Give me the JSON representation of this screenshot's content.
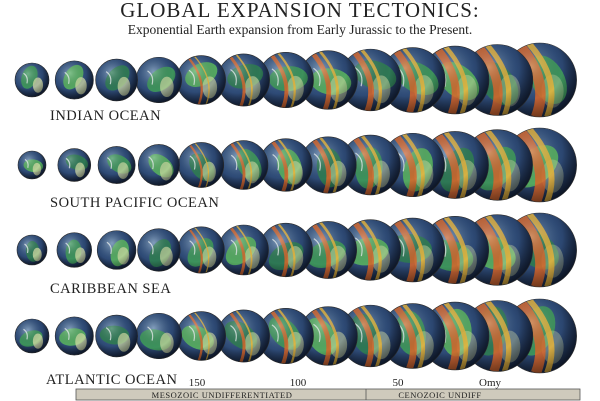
{
  "header": {
    "title": "GLOBAL EXPANSION TECTONICS:",
    "subtitle": "Exponential Earth expansion from Early Jurassic to the Present."
  },
  "rows": [
    {
      "label": "INDIAN OCEAN"
    },
    {
      "label": "SOUTH PACIFIC OCEAN"
    },
    {
      "label": "CARIBBEAN SEA"
    },
    {
      "label": "ATLANTIC OCEAN"
    }
  ],
  "timeline": {
    "ticks": [
      "150",
      "100",
      "50",
      "Omy"
    ],
    "periods": [
      "MESOZOIC UNDIFFERENTIATED",
      "CENOZOIC UNDIFF"
    ]
  }
}
